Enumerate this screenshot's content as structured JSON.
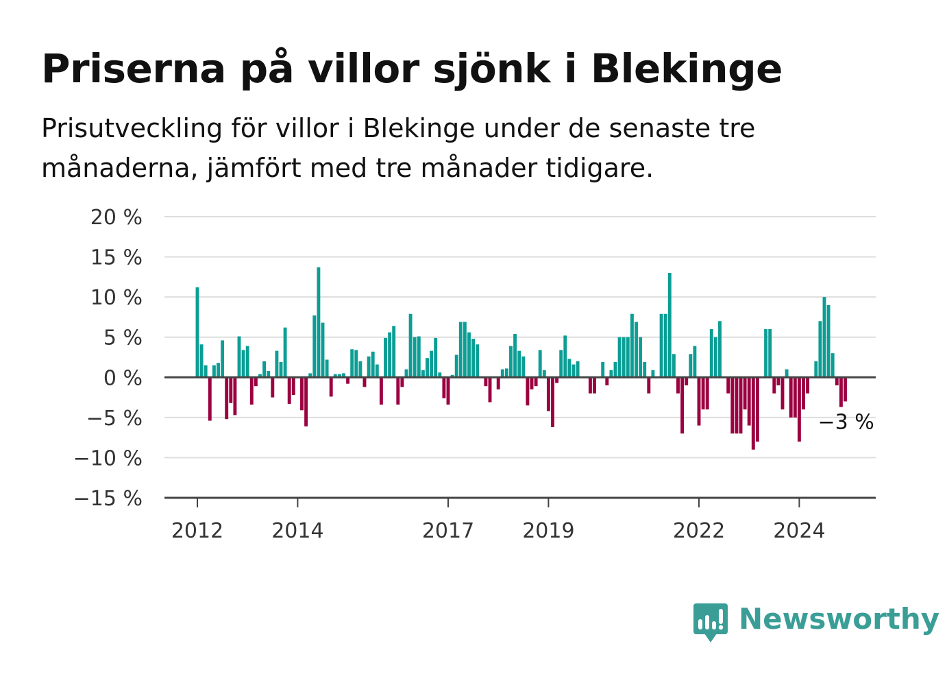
{
  "title": "Priserna på villor sjönk i Blekinge",
  "subtitle": "Prisutveckling för villor i Blekinge under de senaste tre månaderna, jämfört med tre månader tidigare.",
  "brand": {
    "name": "Newsworthy",
    "color": "#3a9e97",
    "icon": "newsworthy-chart-bubble-icon"
  },
  "colors": {
    "positive": "#0c9e95",
    "negative": "#9b0040",
    "grid": "#dddddd",
    "axis": "#444444"
  },
  "chart_data": {
    "type": "bar",
    "grid": true,
    "x_unit": "month",
    "ylim": [
      -15,
      20
    ],
    "y_ticks": [
      {
        "value": 20,
        "label": "20 %"
      },
      {
        "value": 15,
        "label": "15 %"
      },
      {
        "value": 10,
        "label": "10 %"
      },
      {
        "value": 5,
        "label": "5 %"
      },
      {
        "value": 0,
        "label": "0 %"
      },
      {
        "value": -5,
        "label": "−5 %"
      },
      {
        "value": -10,
        "label": "−10 %"
      },
      {
        "value": -15,
        "label": "−15 %"
      }
    ],
    "x_ticks": [
      {
        "date": "2012-01",
        "label": "2012"
      },
      {
        "date": "2014-01",
        "label": "2014"
      },
      {
        "date": "2017-01",
        "label": "2017"
      },
      {
        "date": "2019-01",
        "label": "2019"
      },
      {
        "date": "2022-01",
        "label": "2022"
      },
      {
        "date": "2024-01",
        "label": "2024"
      }
    ],
    "start_month": "2012-01",
    "values": [
      11.2,
      4.1,
      1.5,
      -5.4,
      1.5,
      1.8,
      4.6,
      -5.2,
      -3.2,
      -4.7,
      5.1,
      3.4,
      3.9,
      -3.4,
      -1.1,
      0.4,
      2.0,
      0.8,
      -2.5,
      3.3,
      1.9,
      6.2,
      -3.3,
      -2.2,
      0.0,
      -4.1,
      -6.1,
      0.5,
      7.7,
      13.7,
      6.8,
      2.2,
      -2.4,
      0.4,
      0.4,
      0.5,
      -0.8,
      3.5,
      3.4,
      2.0,
      -1.2,
      2.6,
      3.2,
      1.6,
      -3.4,
      4.9,
      5.6,
      6.4,
      -3.4,
      -1.2,
      1.0,
      7.9,
      5.0,
      5.1,
      0.9,
      2.4,
      3.3,
      4.9,
      0.6,
      -2.6,
      -3.4,
      0.3,
      2.8,
      6.9,
      6.9,
      5.6,
      4.8,
      4.1,
      0.0,
      -1.1,
      -3.1,
      -0.1,
      -1.5,
      1.0,
      1.1,
      3.9,
      5.4,
      3.3,
      2.6,
      -3.5,
      -1.5,
      -1.1,
      3.4,
      0.9,
      -4.2,
      -6.2,
      -0.7,
      3.4,
      5.2,
      2.3,
      1.6,
      2.0,
      0.0,
      0.0,
      -2.0,
      -2.0,
      0.0,
      1.9,
      -1.0,
      0.9,
      1.9,
      5.0,
      5.0,
      5.0,
      7.9,
      6.9,
      5.0,
      1.9,
      -2.0,
      0.9,
      0.0,
      7.9,
      7.9,
      13.0,
      2.9,
      -2.0,
      -7.0,
      -1.0,
      2.9,
      3.9,
      -6.0,
      -4.0,
      -4.0,
      6.0,
      5.0,
      7.0,
      0.0,
      -2.0,
      -7.0,
      -7.0,
      -7.0,
      -4.0,
      -6.0,
      -9.0,
      -8.0,
      0.0,
      6.0,
      6.0,
      -2.0,
      -1.0,
      -4.0,
      1.0,
      -5.0,
      -5.0,
      -8.0,
      -4.0,
      -2.0,
      0.0,
      2.0,
      7.0,
      10.0,
      9.0,
      3.0,
      -1.0,
      -3.7,
      -3.0
    ],
    "annotations": [
      {
        "label": "−3 %",
        "value": -3
      }
    ]
  }
}
